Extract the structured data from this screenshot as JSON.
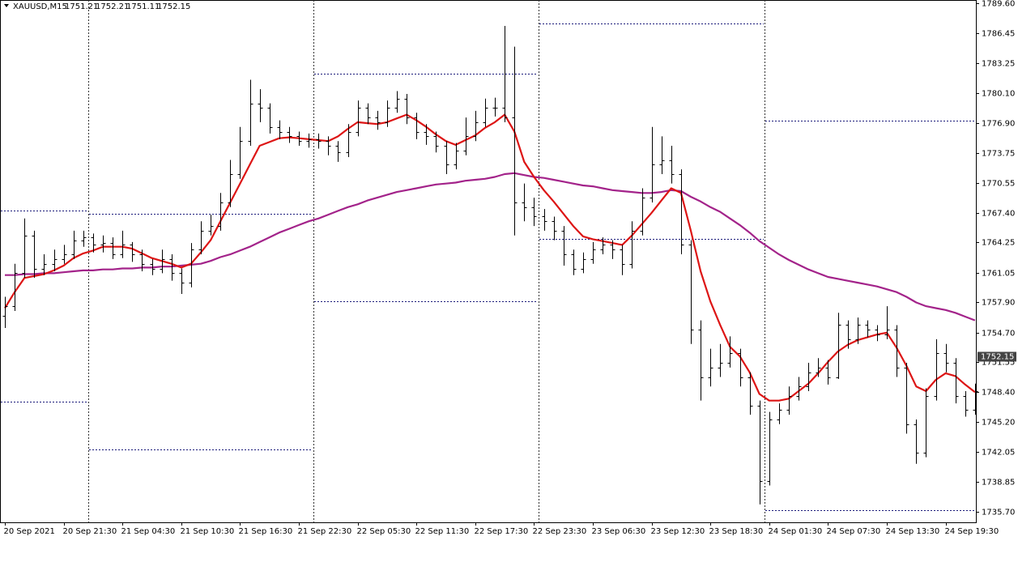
{
  "chart_data": {
    "type": "ohlc",
    "title": "XAUUSD,M15",
    "quote": [
      1751.21,
      1752.21,
      1751.11,
      1752.15
    ],
    "ylim": [
      1734.6,
      1789.95
    ],
    "yticks": [
      {
        "value": 1789.6,
        "label": "1789.60"
      },
      1786.45,
      1783.25,
      {
        "value": 1780.1,
        "label": "1780.10"
      },
      {
        "value": 1776.9,
        "label": "1776.90"
      },
      1773.75,
      1770.55,
      {
        "value": 1767.4,
        "label": "1767.40"
      },
      1764.25,
      1761.05,
      {
        "value": 1757.9,
        "label": "1757.90"
      },
      {
        "value": 1754.7,
        "label": "1754.70"
      },
      1751.55,
      {
        "value": 1748.4,
        "label": "1748.40"
      },
      {
        "value": 1745.2,
        "label": "1745.20"
      },
      1742.05,
      1738.85,
      {
        "value": 1735.7,
        "label": "1735.70"
      }
    ],
    "bar_color": "#000000",
    "categories": [
      "20 Sep 2021",
      null,
      null,
      null,
      null,
      null,
      "20 Sep 21:30",
      null,
      null,
      null,
      null,
      null,
      "21 Sep 04:30",
      null,
      null,
      null,
      null,
      null,
      "21 Sep 10:30",
      null,
      null,
      null,
      null,
      null,
      "21 Sep 16:30",
      null,
      null,
      null,
      null,
      null,
      "21 Sep 22:30",
      null,
      null,
      null,
      null,
      null,
      "22 Sep 05:30",
      null,
      null,
      null,
      null,
      null,
      "22 Sep 11:30",
      null,
      null,
      null,
      null,
      null,
      "22 Sep 17:30",
      null,
      null,
      null,
      null,
      null,
      "22 Sep 23:30",
      null,
      null,
      null,
      null,
      null,
      "23 Sep 06:30",
      null,
      null,
      null,
      null,
      null,
      "23 Sep 12:30",
      null,
      null,
      null,
      null,
      null,
      "23 Sep 18:30",
      null,
      null,
      null,
      null,
      null,
      "24 Sep 01:30",
      null,
      null,
      null,
      null,
      null,
      "24 Sep 07:30",
      null,
      null,
      null,
      null,
      null,
      "24 Sep 13:30",
      null,
      null,
      null,
      null,
      null,
      "24 Sep 19:30",
      null,
      null,
      null
    ],
    "open": [
      1756.5,
      1757.5,
      1761,
      1765,
      1761.5,
      1762,
      1762.5,
      1763,
      1764.5,
      1764.8,
      1764,
      1764.2,
      1763,
      1764,
      1763,
      1762,
      1761.5,
      1762.5,
      1761,
      1760,
      1763.5,
      1765.5,
      1766,
      1768.5,
      1771.5,
      1775,
      1779,
      1778.5,
      1776.5,
      1776,
      1775.5,
      1775,
      1775.2,
      1775,
      1774.5,
      1773.8,
      1776,
      1778.5,
      1777.5,
      1777,
      1778.5,
      1779.5,
      1777.5,
      1776,
      1775.5,
      1774.5,
      1772.5,
      1774,
      1775.5,
      1777,
      1778.5,
      1778.5,
      1777.5,
      1768.5,
      1768,
      1767,
      1766.5,
      1765.5,
      1763,
      1761.5,
      1762.5,
      1763.5,
      1764,
      1763.5,
      1762,
      1765.5,
      1769,
      1772.5,
      1773,
      1771.5,
      1764,
      1755,
      1750,
      1751,
      1751.5,
      1752.5,
      1750,
      1747,
      1739,
      1745.5,
      1746.5,
      1748,
      1749,
      1750.5,
      1751,
      1750,
      1755.5,
      1754,
      1755.5,
      1755,
      1754.5,
      1755,
      1751,
      1745,
      1742,
      1748,
      1752.5,
      1751.5,
      1748,
      1746.5
    ],
    "high": [
      1758.5,
      1762,
      1766.8,
      1765.5,
      1763,
      1763.5,
      1764,
      1765.5,
      1765.5,
      1765.2,
      1765,
      1764.8,
      1765.5,
      1764.3,
      1763.5,
      1762.5,
      1763.5,
      1763,
      1761.5,
      1764.2,
      1766.5,
      1767.2,
      1769.5,
      1773,
      1776.5,
      1781.5,
      1780.5,
      1779,
      1777.2,
      1776.5,
      1776,
      1775.8,
      1775.8,
      1775.5,
      1775,
      1776.8,
      1779.3,
      1779,
      1778.2,
      1779.3,
      1780.3,
      1780,
      1778,
      1776.8,
      1776,
      1775,
      1774.8,
      1777.5,
      1778.2,
      1779.5,
      1779.6,
      1787.2,
      1785,
      1770.5,
      1769,
      1767.8,
      1767,
      1766,
      1763.5,
      1763.2,
      1764.3,
      1764.8,
      1764.5,
      1764,
      1766.5,
      1770,
      1776.5,
      1775.5,
      1774.5,
      1772,
      1764.5,
      1756,
      1753,
      1753.5,
      1754.3,
      1753,
      1750.5,
      1747.5,
      1746.3,
      1747.2,
      1749,
      1750,
      1751.5,
      1752,
      1751.8,
      1756.8,
      1756,
      1756.3,
      1756,
      1755.5,
      1757.5,
      1755.5,
      1751.5,
      1745.5,
      1748.8,
      1754,
      1753.5,
      1752,
      1748.5,
      1749.3
    ],
    "low": [
      1755.2,
      1757,
      1760.5,
      1760.5,
      1760.8,
      1761.2,
      1762,
      1762.5,
      1763.8,
      1763.2,
      1763.2,
      1762.5,
      1762.6,
      1762.2,
      1761.2,
      1760.8,
      1761,
      1760.2,
      1758.8,
      1759.5,
      1763,
      1765,
      1765.5,
      1768,
      1771,
      1774.5,
      1777,
      1775.8,
      1775.2,
      1774.8,
      1774.5,
      1774.3,
      1774.2,
      1773.5,
      1772.8,
      1773.3,
      1775.5,
      1776.8,
      1776.2,
      1776.5,
      1778,
      1776.8,
      1775.2,
      1774.6,
      1773.8,
      1771.5,
      1772,
      1773.5,
      1775,
      1776.5,
      1777.6,
      1777,
      1765,
      1766.5,
      1766,
      1765.5,
      1764.5,
      1761.8,
      1760.8,
      1761,
      1762,
      1763,
      1762.5,
      1760.8,
      1761.5,
      1765,
      1768.5,
      1771.5,
      1770.5,
      1763,
      1753.5,
      1747.5,
      1749,
      1750,
      1751,
      1749,
      1746,
      1736.5,
      1738.5,
      1745,
      1746,
      1747.5,
      1748.5,
      1750,
      1749.2,
      1749.8,
      1753,
      1753.5,
      1754.2,
      1753.8,
      1754,
      1750,
      1744,
      1740.8,
      1741.5,
      1747.5,
      1750.5,
      1747.2,
      1745.8,
      1746
    ],
    "close": [
      1757.5,
      1761,
      1765,
      1761.5,
      1762,
      1762.5,
      1763,
      1764.5,
      1764.8,
      1764,
      1764.2,
      1763,
      1764,
      1763,
      1762,
      1761.5,
      1762.5,
      1761,
      1760,
      1763.5,
      1765.5,
      1766,
      1768.5,
      1771.5,
      1775,
      1779,
      1778.5,
      1776.5,
      1776,
      1775.5,
      1775,
      1775.2,
      1775,
      1774.5,
      1773.8,
      1776,
      1778.5,
      1777.5,
      1777,
      1778.5,
      1779.5,
      1777.5,
      1776,
      1775.5,
      1774.5,
      1772.5,
      1774,
      1775.5,
      1777,
      1778.5,
      1778.5,
      1777.5,
      1768.5,
      1768,
      1767,
      1766.5,
      1765.5,
      1763,
      1761.5,
      1762.5,
      1763.5,
      1764,
      1763.5,
      1762,
      1765.5,
      1769,
      1772.5,
      1773,
      1771.5,
      1764,
      1755,
      1750,
      1751,
      1751.5,
      1752.5,
      1750,
      1747,
      1739,
      1745.5,
      1746.5,
      1748,
      1749,
      1750.5,
      1751,
      1750,
      1755.5,
      1754,
      1755.5,
      1755,
      1754.5,
      1755,
      1751,
      1745,
      1742,
      1748,
      1752.5,
      1751.5,
      1748,
      1746.5,
      1748.5
    ],
    "lines": [
      {
        "color": "#a3238a",
        "values": [
          1760.8,
          1760.8,
          1760.9,
          1760.9,
          1761,
          1761,
          1761.1,
          1761.2,
          1761.3,
          1761.3,
          1761.4,
          1761.4,
          1761.5,
          1761.5,
          1761.6,
          1761.6,
          1761.7,
          1761.7,
          1761.8,
          1761.9,
          1762,
          1762.3,
          1762.7,
          1763,
          1763.4,
          1763.8,
          1764.3,
          1764.8,
          1765.3,
          1765.7,
          1766.1,
          1766.5,
          1766.8,
          1767.2,
          1767.6,
          1768,
          1768.3,
          1768.7,
          1769,
          1769.3,
          1769.6,
          1769.8,
          1770,
          1770.2,
          1770.4,
          1770.5,
          1770.6,
          1770.8,
          1770.9,
          1771,
          1771.2,
          1771.5,
          1771.6,
          1771.4,
          1771.2,
          1771.1,
          1770.9,
          1770.7,
          1770.5,
          1770.3,
          1770.2,
          1770,
          1769.8,
          1769.7,
          1769.6,
          1769.5,
          1769.5,
          1769.6,
          1769.8,
          1769.7,
          1769.1,
          1768.6,
          1768,
          1767.5,
          1766.8,
          1766.1,
          1765.3,
          1764.4,
          1763.7,
          1763,
          1762.4,
          1761.9,
          1761.4,
          1761,
          1760.6,
          1760.4,
          1760.2,
          1760,
          1759.8,
          1759.6,
          1759.3,
          1759,
          1758.5,
          1757.9,
          1757.5,
          1757.3,
          1757.1,
          1756.8,
          1756.4,
          1756
        ]
      },
      {
        "color": "#dd1515",
        "values": [
          1757.3,
          1759,
          1760.5,
          1760.7,
          1760.9,
          1761.3,
          1761.8,
          1762.6,
          1763.1,
          1763.4,
          1763.8,
          1763.8,
          1763.8,
          1763.6,
          1763.1,
          1762.6,
          1762.3,
          1762,
          1761.6,
          1762,
          1763.2,
          1764.5,
          1766.5,
          1768.5,
          1770.5,
          1772.5,
          1774.5,
          1774.9,
          1775.3,
          1775.4,
          1775.3,
          1775.2,
          1775.1,
          1775,
          1775.5,
          1776.3,
          1777,
          1776.9,
          1776.8,
          1777,
          1777.4,
          1777.8,
          1777.2,
          1776.5,
          1775.7,
          1775,
          1774.6,
          1775.1,
          1775.6,
          1776.4,
          1777,
          1777.8,
          1776,
          1772.8,
          1771.2,
          1769.8,
          1768.6,
          1767.3,
          1766,
          1764.9,
          1764.6,
          1764.4,
          1764.2,
          1764,
          1765,
          1766.2,
          1767.4,
          1768.7,
          1770,
          1769.5,
          1765.5,
          1761.2,
          1758,
          1755.5,
          1753.2,
          1752.2,
          1750.5,
          1748.2,
          1747.5,
          1747.5,
          1747.7,
          1748.5,
          1749.3,
          1750.4,
          1751.6,
          1752.7,
          1753.4,
          1753.9,
          1754.2,
          1754.5,
          1754.7,
          1753.1,
          1751.2,
          1749,
          1748.5,
          1749.7,
          1750.4,
          1750.1,
          1749.2,
          1748.4
        ]
      }
    ],
    "levels": [
      {
        "high": 1767.6,
        "low": 1747.4
      },
      {
        "high": 1767.3,
        "low": 1742.3
      },
      {
        "high": 1782.1,
        "low": 1758.0
      },
      {
        "high": 1787.5,
        "low": 1764.6
      },
      {
        "high": 1777.2,
        "low": 1735.9
      }
    ],
    "price_label_color": "#444444"
  }
}
